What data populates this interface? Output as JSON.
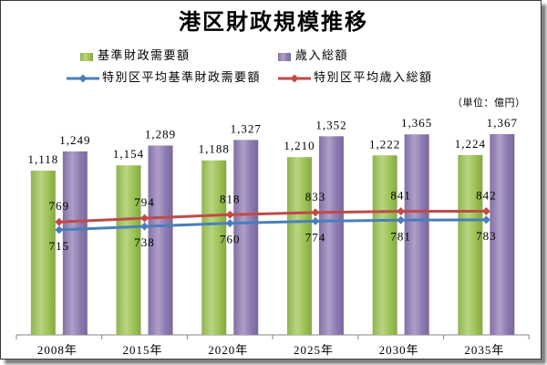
{
  "chart_data": {
    "type": "bar",
    "title": "港区財政規模推移",
    "unit": "（単位：億円）",
    "categories": [
      "2008年",
      "2015年",
      "2020年",
      "2025年",
      "2030年",
      "2035年"
    ],
    "ylim": [
      0,
      1600
    ],
    "grid": false,
    "y_axis_shown": false,
    "legend_position": "top",
    "series": [
      {
        "name": "基準財政需要額",
        "type": "bar",
        "color": "#9CC453",
        "values": [
          1118,
          1154,
          1188,
          1210,
          1222,
          1224
        ],
        "labels": [
          "1,118",
          "1,154",
          "1,188",
          "1,210",
          "1,222",
          "1,224"
        ]
      },
      {
        "name": "歳入総額",
        "type": "bar",
        "color": "#8F7AB3",
        "values": [
          1249,
          1289,
          1327,
          1352,
          1365,
          1367
        ],
        "labels": [
          "1,249",
          "1,289",
          "1,327",
          "1,352",
          "1,365",
          "1,367"
        ]
      },
      {
        "name": "特別区平均基準財政需要額",
        "type": "line",
        "marker": "diamond",
        "color": "#4A7EBB",
        "values": [
          715,
          738,
          760,
          774,
          781,
          783
        ]
      },
      {
        "name": "特別区平均歳入総額",
        "type": "line",
        "marker": "diamond",
        "color": "#BE4B48",
        "values": [
          769,
          794,
          818,
          833,
          841,
          842
        ]
      }
    ]
  }
}
